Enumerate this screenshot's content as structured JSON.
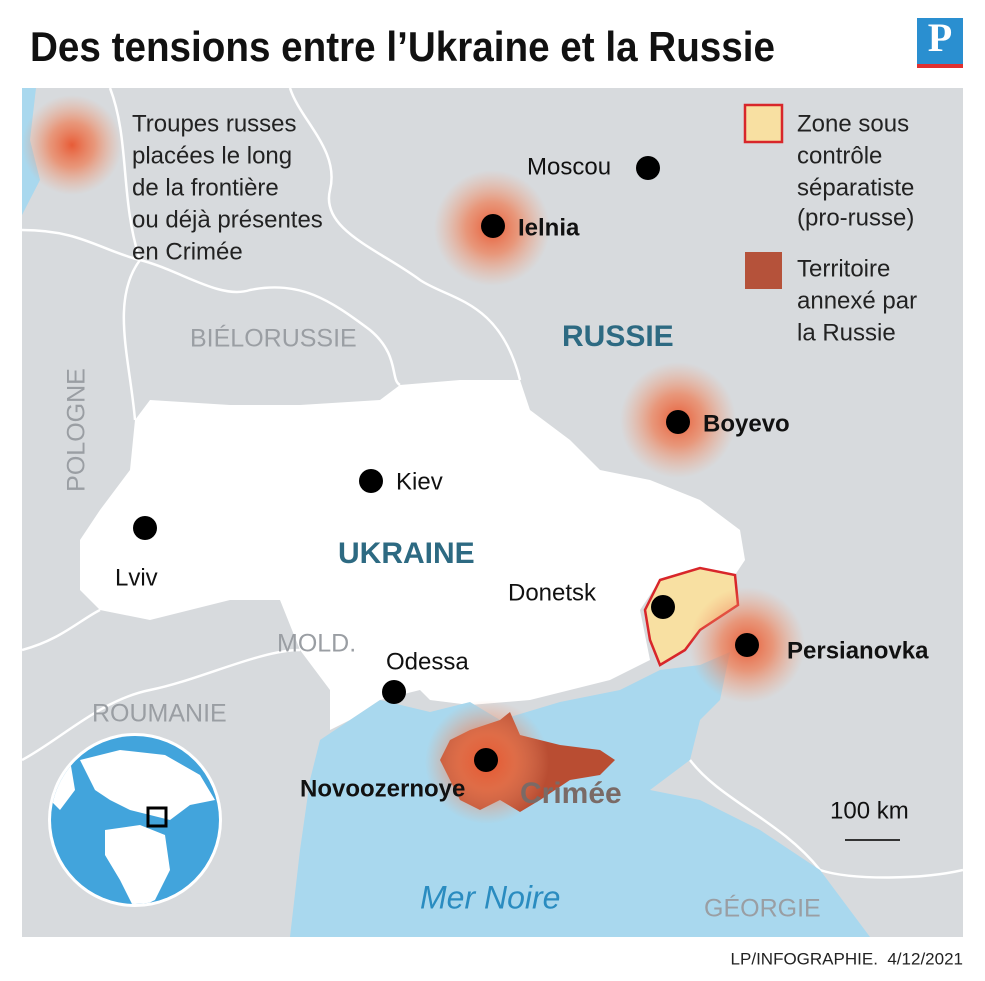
{
  "header": {
    "title": "Des tensions entre l’Ukraine et la Russie",
    "logo": "P"
  },
  "legend": {
    "troops": [
      "Troupes russes",
      "placées le long",
      "de la frontière",
      "ou déjà présentes",
      "en Crimée"
    ],
    "separatist": [
      "Zone sous",
      "contrôle",
      "séparatiste",
      "(pro-russe)"
    ],
    "annexed": [
      "Territoire",
      "annexé par",
      "la Russie"
    ]
  },
  "countries": [
    "BIÉLORUSSIE",
    "RUSSIE",
    "POLOGNE",
    "UKRAINE",
    "MOLD.",
    "ROUMANIE",
    "GÉORGIE"
  ],
  "sea": "Mer Noire",
  "region": "Crimée",
  "cities": [
    "Moscou",
    "Ielnia",
    "Boyevo",
    "Kiev",
    "Lviv",
    "Donetsk",
    "Persianovka",
    "Odessa",
    "Novoozernoye"
  ],
  "scale": "100 km",
  "credit": "LP/INFOGRAPHIE.  4/12/2021"
}
